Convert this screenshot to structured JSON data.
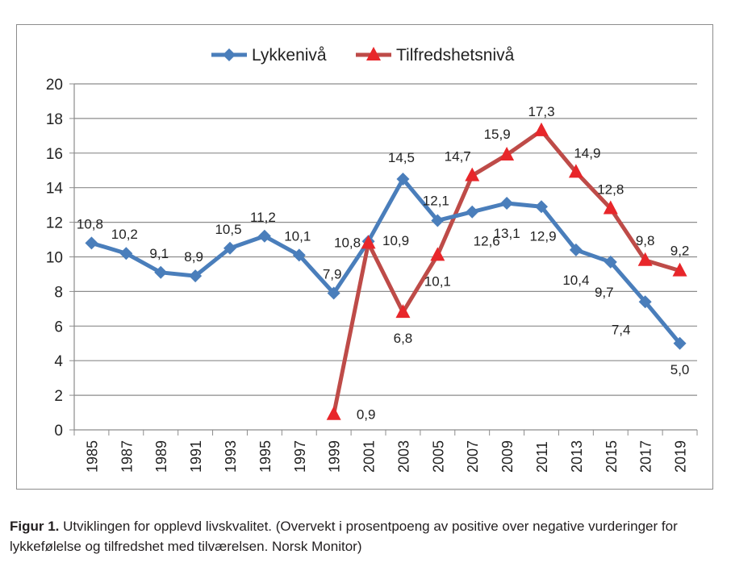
{
  "chart_data": {
    "type": "line",
    "title": "",
    "xlabel": "",
    "ylabel": "",
    "categories": [
      "1985",
      "1987",
      "1989",
      "1991",
      "1993",
      "1995",
      "1997",
      "1999",
      "2001",
      "2003",
      "2005",
      "2007",
      "2009",
      "2011",
      "2013",
      "2015",
      "2017",
      "2019"
    ],
    "ylim": [
      0,
      20
    ],
    "yticks": [
      "0",
      "2",
      "4",
      "6",
      "8",
      "10",
      "12",
      "14",
      "16",
      "18",
      "20"
    ],
    "grid": true,
    "legend_position": "top",
    "series": [
      {
        "name": "Lykkenivå",
        "color": "#4a7ebb",
        "marker": "diamond",
        "values": [
          10.8,
          10.2,
          9.1,
          8.9,
          10.5,
          11.2,
          10.1,
          7.9,
          10.9,
          14.5,
          12.1,
          12.6,
          13.1,
          12.9,
          10.4,
          9.7,
          7.4,
          5.0
        ],
        "labels": [
          "10,8",
          "10,2",
          "9,1",
          "8,9",
          "10,5",
          "11,2",
          "10,1",
          "7,9",
          "10,9",
          "14,5",
          "12,1",
          "12,6",
          "13,1",
          "12,9",
          "10,4",
          "9,7",
          "7,4",
          "5,0"
        ]
      },
      {
        "name": "Tilfredshetsnivå",
        "color": "#be4b48",
        "marker_color": "#e8262a",
        "marker": "triangle",
        "values": [
          null,
          null,
          null,
          null,
          null,
          null,
          null,
          0.9,
          10.8,
          6.8,
          10.1,
          14.7,
          15.9,
          17.3,
          14.9,
          12.8,
          9.8,
          9.2
        ],
        "labels": [
          null,
          null,
          null,
          null,
          null,
          null,
          null,
          "0,9",
          "10,8",
          "6,8",
          "10,1",
          "14,7",
          "15,9",
          "17,3",
          "14,9",
          "12,8",
          "9,8",
          "9,2"
        ]
      }
    ]
  },
  "caption": {
    "label": "Figur 1.",
    "text": " Utviklingen for opplevd livskvalitet. (Overvekt i prosentpoeng av positive over negative vurderinger for lykkefølelse og tilfredshet med tilværelsen. Norsk Monitor)"
  }
}
